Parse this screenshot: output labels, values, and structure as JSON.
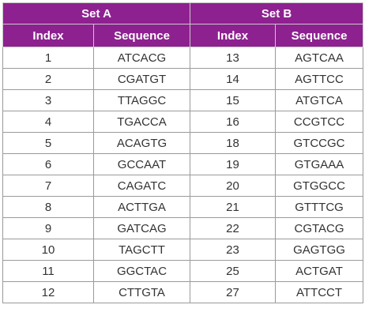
{
  "sets": [
    "Set A",
    "Set B"
  ],
  "columns": [
    "Index",
    "Sequence",
    "Index",
    "Sequence"
  ],
  "rows": [
    [
      "1",
      "ATCACG",
      "13",
      "AGTCAA"
    ],
    [
      "2",
      "CGATGT",
      "14",
      "AGTTCC"
    ],
    [
      "3",
      "TTAGGC",
      "15",
      "ATGTCA"
    ],
    [
      "4",
      "TGACCA",
      "16",
      "CCGTCC"
    ],
    [
      "5",
      "ACAGTG",
      "18",
      "GTCCGC"
    ],
    [
      "6",
      "GCCAAT",
      "19",
      "GTGAAA"
    ],
    [
      "7",
      "CAGATC",
      "20",
      "GTGGCC"
    ],
    [
      "8",
      "ACTTGA",
      "21",
      "GTTTCG"
    ],
    [
      "9",
      "GATCAG",
      "22",
      "CGTACG"
    ],
    [
      "10",
      "TAGCTT",
      "23",
      "GAGTGG"
    ],
    [
      "11",
      "GGCTAC",
      "25",
      "ACTGAT"
    ],
    [
      "12",
      "CTTGTA",
      "27",
      "ATTCCT"
    ]
  ]
}
